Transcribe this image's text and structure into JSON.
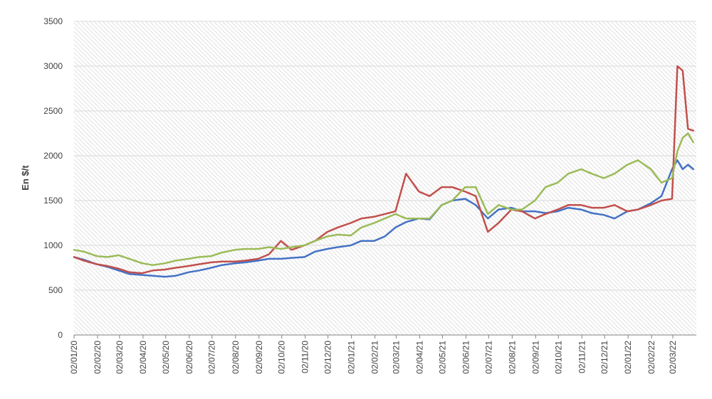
{
  "chart_data": {
    "type": "line",
    "title": "",
    "xlabel": "",
    "ylabel": "En $/t",
    "ylim": [
      0,
      3500
    ],
    "yticks": [
      0,
      500,
      1000,
      1500,
      2000,
      2500,
      3000,
      3500
    ],
    "grid": true,
    "legend": "none",
    "x_tick_labels": [
      "02/01/20",
      "02/02/20",
      "02/03/20",
      "02/04/20",
      "02/05/20",
      "02/06/20",
      "02/07/20",
      "02/08/20",
      "02/09/20",
      "02/10/20",
      "02/11/20",
      "02/12/20",
      "02/01/21",
      "02/02/21",
      "02/03/21",
      "02/04/21",
      "02/05/21",
      "02/06/21",
      "02/07/21",
      "02/08/21",
      "02/09/21",
      "02/10/21",
      "02/11/21",
      "02/12/21",
      "02/01/22",
      "02/02/22",
      "02/03/22"
    ],
    "x": [
      "2020-01-02",
      "2020-01-15",
      "2020-02-01",
      "2020-02-15",
      "2020-03-01",
      "2020-03-15",
      "2020-04-01",
      "2020-04-15",
      "2020-05-01",
      "2020-05-15",
      "2020-06-01",
      "2020-06-15",
      "2020-07-01",
      "2020-07-15",
      "2020-08-01",
      "2020-08-15",
      "2020-09-01",
      "2020-09-15",
      "2020-10-01",
      "2020-10-15",
      "2020-11-01",
      "2020-11-15",
      "2020-12-01",
      "2020-12-15",
      "2021-01-01",
      "2021-01-15",
      "2021-02-01",
      "2021-02-15",
      "2021-03-01",
      "2021-03-15",
      "2021-04-01",
      "2021-04-15",
      "2021-05-01",
      "2021-05-15",
      "2021-06-01",
      "2021-06-15",
      "2021-07-01",
      "2021-07-15",
      "2021-08-01",
      "2021-08-15",
      "2021-09-01",
      "2021-09-15",
      "2021-10-01",
      "2021-10-15",
      "2021-11-01",
      "2021-11-15",
      "2021-12-01",
      "2021-12-15",
      "2022-01-01",
      "2022-01-15",
      "2022-02-01",
      "2022-02-15",
      "2022-03-01",
      "2022-03-08",
      "2022-03-15",
      "2022-03-22",
      "2022-03-29"
    ],
    "series": [
      {
        "color": "#4472c4",
        "values": [
          870,
          840,
          790,
          760,
          720,
          680,
          670,
          660,
          650,
          660,
          700,
          720,
          750,
          780,
          800,
          810,
          830,
          850,
          850,
          860,
          870,
          930,
          960,
          980,
          1000,
          1050,
          1050,
          1100,
          1200,
          1260,
          1300,
          1290,
          1450,
          1500,
          1520,
          1450,
          1300,
          1400,
          1420,
          1380,
          1380,
          1360,
          1380,
          1420,
          1400,
          1360,
          1340,
          1300,
          1380,
          1400,
          1470,
          1550,
          1850,
          1950,
          1850,
          1900,
          1850
        ]
      },
      {
        "color": "#c0504d",
        "values": [
          870,
          830,
          790,
          770,
          740,
          700,
          690,
          720,
          730,
          750,
          770,
          790,
          810,
          820,
          820,
          830,
          850,
          900,
          1050,
          950,
          1000,
          1050,
          1150,
          1200,
          1250,
          1300,
          1320,
          1350,
          1380,
          1800,
          1600,
          1550,
          1650,
          1650,
          1600,
          1550,
          1150,
          1250,
          1400,
          1380,
          1300,
          1350,
          1400,
          1450,
          1450,
          1420,
          1420,
          1450,
          1380,
          1400,
          1450,
          1500,
          1520,
          3000,
          2950,
          2300,
          2280
        ]
      },
      {
        "color": "#9bbb59",
        "values": [
          950,
          930,
          880,
          870,
          890,
          850,
          800,
          780,
          800,
          830,
          850,
          870,
          880,
          920,
          950,
          960,
          960,
          980,
          960,
          980,
          1000,
          1050,
          1100,
          1120,
          1110,
          1200,
          1250,
          1300,
          1350,
          1300,
          1300,
          1300,
          1450,
          1500,
          1650,
          1650,
          1350,
          1450,
          1400,
          1400,
          1500,
          1650,
          1700,
          1800,
          1850,
          1800,
          1750,
          1800,
          1900,
          1950,
          1850,
          1700,
          1750,
          2050,
          2200,
          2250,
          2150
        ]
      }
    ]
  }
}
